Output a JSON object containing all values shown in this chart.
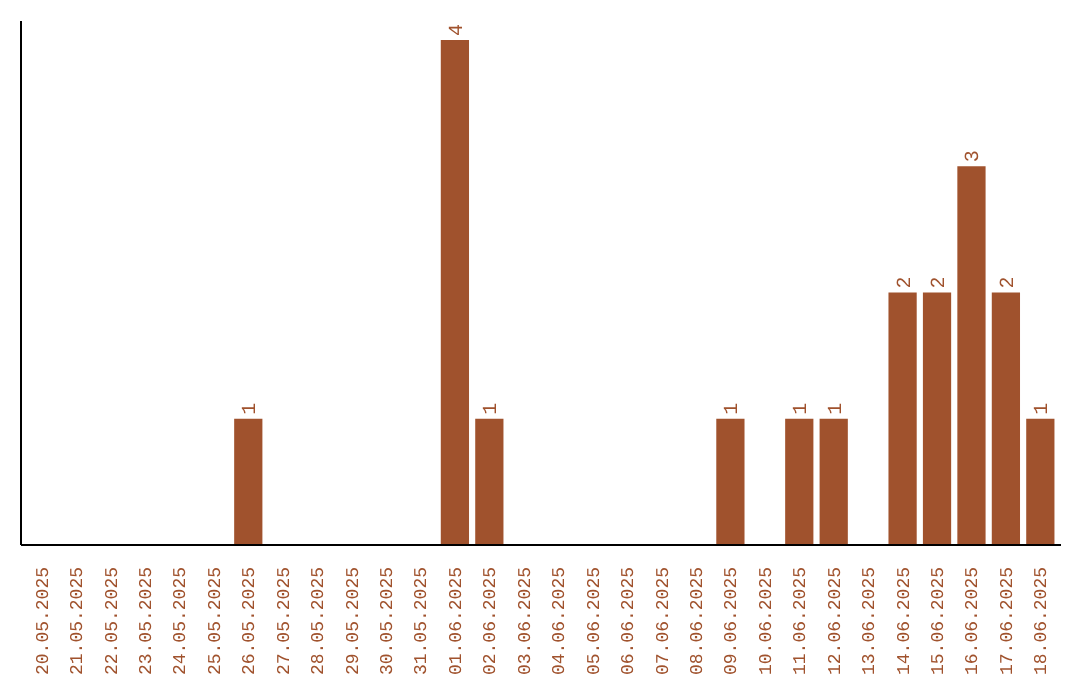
{
  "chart_data": {
    "type": "bar",
    "categories": [
      "20.05.2025",
      "21.05.2025",
      "22.05.2025",
      "23.05.2025",
      "24.05.2025",
      "25.05.2025",
      "26.05.2025",
      "27.05.2025",
      "28.05.2025",
      "29.05.2025",
      "30.05.2025",
      "31.05.2025",
      "01.06.2025",
      "02.06.2025",
      "03.06.2025",
      "04.06.2025",
      "05.06.2025",
      "06.06.2025",
      "07.06.2025",
      "08.06.2025",
      "09.06.2025",
      "10.06.2025",
      "11.06.2025",
      "12.06.2025",
      "13.06.2025",
      "14.06.2025",
      "15.06.2025",
      "16.06.2025",
      "17.06.2025",
      "18.06.2025"
    ],
    "values": [
      0,
      0,
      0,
      0,
      0,
      0,
      1,
      0,
      0,
      0,
      0,
      0,
      4,
      1,
      0,
      0,
      0,
      0,
      0,
      0,
      1,
      0,
      1,
      1,
      0,
      2,
      2,
      3,
      2,
      1
    ],
    "value_labels": [
      null,
      null,
      null,
      null,
      null,
      null,
      "1",
      null,
      null,
      null,
      null,
      null,
      "4",
      "1",
      null,
      null,
      null,
      null,
      null,
      null,
      "1",
      null,
      "1",
      "1",
      null,
      "2",
      "2",
      "3",
      "2",
      "1"
    ],
    "color": "#a0522d",
    "ylim": [
      0,
      4.15
    ],
    "tick_labels": "x"
  }
}
